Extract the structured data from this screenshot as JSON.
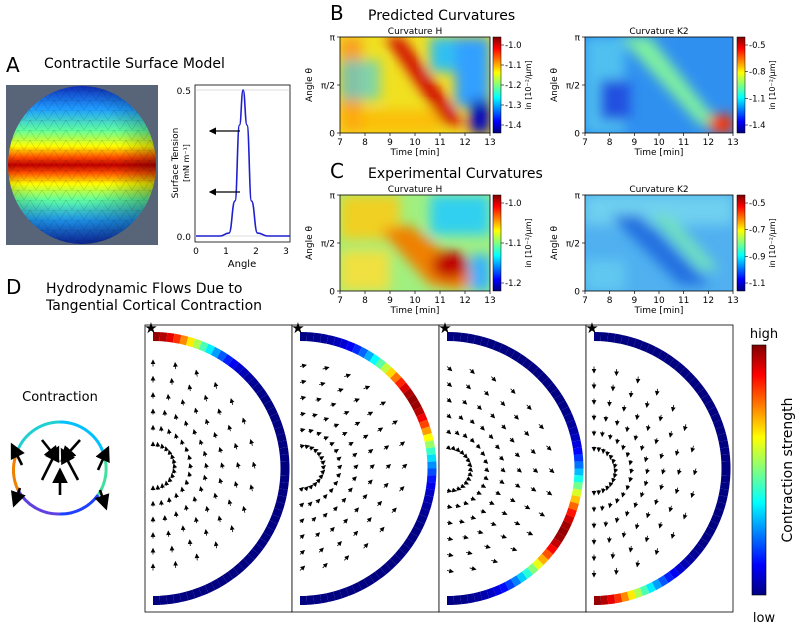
{
  "panels": {
    "A": {
      "letter": "A",
      "title": "Contractile Surface Model",
      "tension_plot": {
        "ylabel_line1": "Surface Tension",
        "ylabel_line2": "[mN m⁻¹]",
        "xlabel": "Angle",
        "xticks": [
          "0",
          "1",
          "2",
          "3"
        ],
        "yticks": [
          "0.0",
          "0.5"
        ]
      }
    },
    "B": {
      "letter": "B",
      "title": "Predicted Curvatures",
      "heatmaps": [
        {
          "title": "Curvature H",
          "colorbar_ticks": [
            "-1.0",
            "-1.1",
            "-1.2",
            "-1.3",
            "-1.4"
          ],
          "colorbar_label": "in [10⁻²/μm]"
        },
        {
          "title": "Curvature K2",
          "colorbar_ticks": [
            "-0.5",
            "-0.8",
            "-1.1",
            "-1.4"
          ],
          "colorbar_label": "in [10⁻²/μm]"
        }
      ]
    },
    "C": {
      "letter": "C",
      "title": "Experimental Curvatures",
      "heatmaps": [
        {
          "title": "Curvature H",
          "colorbar_ticks": [
            "-1.0",
            "-1.1",
            "-1.2"
          ],
          "colorbar_label": "in [10⁻²/μm]"
        },
        {
          "title": "Curvature K2",
          "colorbar_ticks": [
            "-0.5",
            "-0.7",
            "-0.9",
            "-1.1"
          ],
          "colorbar_label": "in [10⁻²/μm]"
        }
      ]
    },
    "D": {
      "letter": "D",
      "title_line1": "Hydrodynamic Flows Due to",
      "title_line2": "Tangential Cortical Contraction",
      "contraction_label": "Contraction",
      "colorbar_high": "high",
      "colorbar_low": "low",
      "colorbar_label": "Contraction strength",
      "star_marker": "★"
    }
  },
  "heatmap_axes": {
    "xlabel": "Time [min]",
    "ylabel": "Angle θ",
    "xticks": [
      "7",
      "8",
      "9",
      "10",
      "11",
      "12",
      "13"
    ],
    "yticks": [
      "0",
      "π/2",
      "π"
    ]
  },
  "chart_data": [
    {
      "type": "line",
      "title": "",
      "xlabel": "Angle",
      "ylabel": "Surface Tension [mN m⁻¹]",
      "xlim": [
        0,
        3.14
      ],
      "ylim": [
        0,
        0.5
      ],
      "series": [
        {
          "values": [
            [
              0,
              0
            ],
            [
              0.8,
              0
            ],
            [
              1.1,
              0.01
            ],
            [
              1.3,
              0.12
            ],
            [
              1.45,
              0.38
            ],
            [
              1.57,
              0.5
            ],
            [
              1.7,
              0.38
            ],
            [
              1.85,
              0.12
            ],
            [
              2.05,
              0.01
            ],
            [
              2.4,
              0
            ],
            [
              3.14,
              0
            ]
          ]
        }
      ],
      "color": "#1f1fcf"
    },
    {
      "type": "heatmap",
      "title": "Curvature H",
      "panel": "Predicted",
      "xlim": [
        7,
        13
      ],
      "ylim": [
        0,
        3.14
      ],
      "colorbar_range": [
        -1.4,
        -1.0
      ],
      "feature": "diagonal band from (9 min, π) to (12 min, 0)"
    },
    {
      "type": "heatmap",
      "title": "Curvature K2",
      "panel": "Predicted",
      "xlim": [
        7,
        13
      ],
      "ylim": [
        0,
        3.14
      ],
      "colorbar_range": [
        -1.4,
        -0.5
      ]
    },
    {
      "type": "heatmap",
      "title": "Curvature H",
      "panel": "Experimental",
      "xlim": [
        7,
        13
      ],
      "ylim": [
        0,
        3.14
      ],
      "colorbar_range": [
        -1.2,
        -1.0
      ]
    },
    {
      "type": "heatmap",
      "title": "Curvature K2",
      "panel": "Experimental",
      "xlim": [
        7,
        13
      ],
      "ylim": [
        0,
        3.14
      ],
      "colorbar_range": [
        -1.1,
        -0.5
      ]
    }
  ],
  "colors": {
    "jet_dark_blue": "#00007f",
    "jet_red": "#d00000",
    "line_blue": "#1f1fcf",
    "sphere_bg": "#586478"
  }
}
